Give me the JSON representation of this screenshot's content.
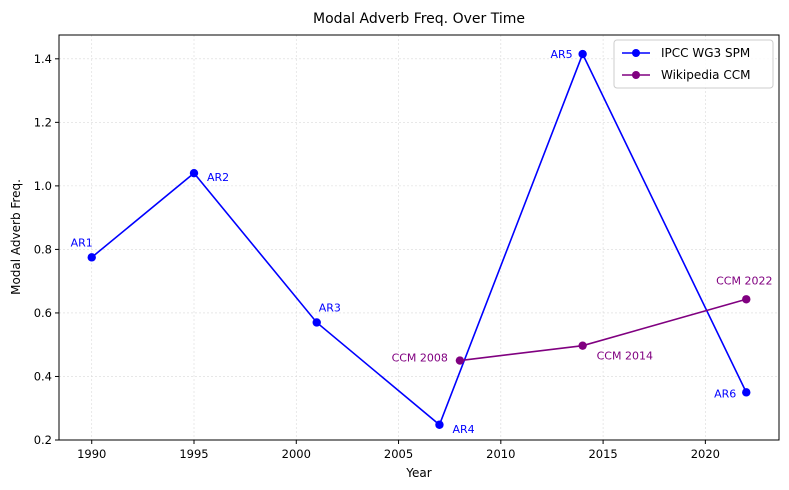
{
  "chart_data": {
    "type": "line",
    "title": "Modal Adverb Freq. Over Time",
    "xlabel": "Year",
    "ylabel": "Modal Adverb Freq.",
    "xlim": [
      1988.4,
      2023.6
    ],
    "ylim": [
      0.2,
      1.475
    ],
    "xticks": [
      1990,
      1995,
      2000,
      2005,
      2010,
      2015,
      2020
    ],
    "yticks": [
      0.2,
      0.4,
      0.6,
      0.8,
      1.0,
      1.2,
      1.4
    ],
    "ytick_labels": [
      "0.2",
      "0.4",
      "0.6",
      "0.8",
      "1.0",
      "1.2",
      "1.4"
    ],
    "grid": true,
    "legend_position": "top-right",
    "series": [
      {
        "name": "IPCC WG3 SPM",
        "color": "#0000ff",
        "x": [
          1990,
          1995,
          2001,
          2007,
          2014,
          2022
        ],
        "y": [
          0.775,
          1.04,
          0.57,
          0.248,
          1.415,
          0.35
        ],
        "labels": [
          "AR1",
          "AR2",
          "AR3",
          "AR4",
          "AR5",
          "AR6"
        ]
      },
      {
        "name": "Wikipedia CCM",
        "color": "#800080",
        "x": [
          2008,
          2014,
          2022
        ],
        "y": [
          0.45,
          0.497,
          0.643
        ],
        "labels": [
          "CCM 2008",
          "CCM 2014",
          "CCM 2022"
        ]
      }
    ]
  }
}
